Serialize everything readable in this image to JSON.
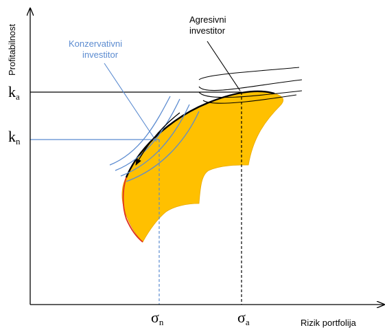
{
  "axes": {
    "y_label": "Profitabilnost",
    "x_label": "Rizik portfolija"
  },
  "levels": {
    "ka": {
      "base": "k",
      "sub": "a"
    },
    "kn": {
      "base": "k",
      "sub": "n"
    },
    "sigma_n": {
      "base": "σ",
      "sub": "n"
    },
    "sigma_a": {
      "base": "σ",
      "sub": "a"
    }
  },
  "annotations": {
    "conservative_line1": "Konzervativni",
    "conservative_line2": "investitor",
    "aggressive_line1": "Agresivni",
    "aggressive_line2": "investitor"
  },
  "colors": {
    "feasible_region": "#FFC000",
    "efficient_frontier": "#000000",
    "minimum_variance_edge": "#E03020",
    "conservative": "#5B8BD0",
    "aggressive": "#000000",
    "axes": "#000000"
  }
}
